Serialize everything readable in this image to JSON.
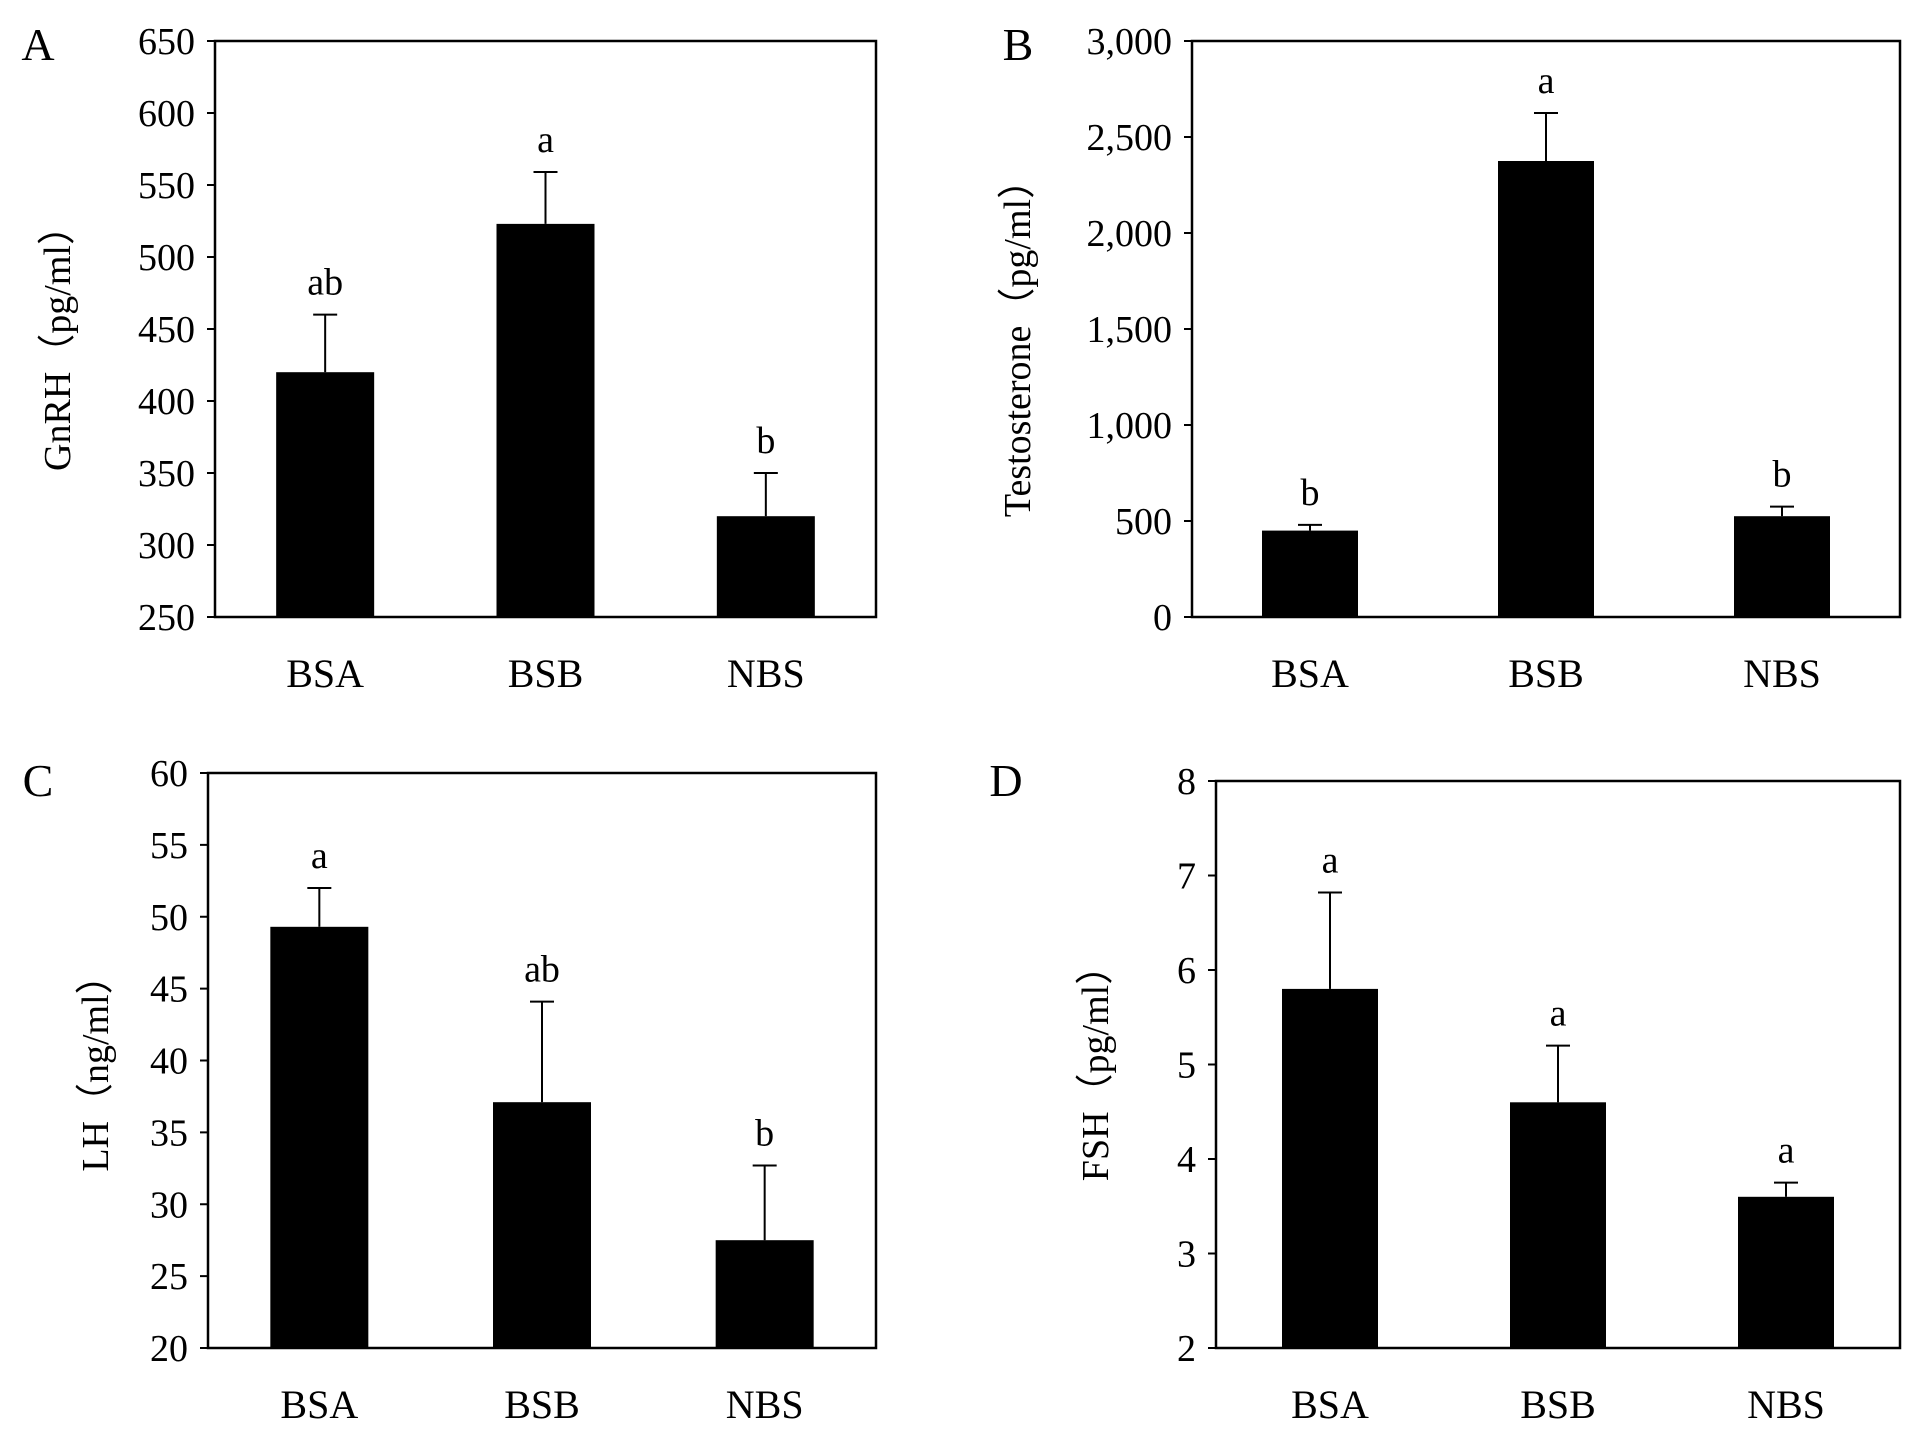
{
  "colors": {
    "bar": "#000000",
    "axis": "#000000",
    "background": "#ffffff"
  },
  "chart_data": [
    {
      "panel": "A",
      "type": "bar",
      "title": "",
      "xlabel": "",
      "ylabel": "GnRH（pg/ml）",
      "categories": [
        "BSA",
        "BSB",
        "NBS"
      ],
      "values": [
        420,
        523,
        320
      ],
      "errors": [
        40,
        36,
        30
      ],
      "significance": [
        "ab",
        "a",
        "b"
      ],
      "ylim": [
        250,
        650
      ],
      "yticks": [
        250,
        300,
        350,
        400,
        450,
        500,
        550,
        600,
        650
      ],
      "ytick_labels": [
        "250",
        "300",
        "350",
        "400",
        "450",
        "500",
        "550",
        "600",
        "650"
      ],
      "grid": false
    },
    {
      "panel": "B",
      "type": "bar",
      "title": "",
      "xlabel": "",
      "ylabel": "Testosterone（pg/ml）",
      "categories": [
        "BSA",
        "BSB",
        "NBS"
      ],
      "values": [
        450,
        2375,
        525
      ],
      "errors": [
        30,
        250,
        50
      ],
      "significance": [
        "b",
        "a",
        "b"
      ],
      "ylim": [
        0,
        3000
      ],
      "yticks": [
        0,
        500,
        1000,
        1500,
        2000,
        2500,
        3000
      ],
      "ytick_labels": [
        "0",
        "500",
        "1,000",
        "1,500",
        "2,000",
        "2,500",
        "3,000"
      ],
      "grid": false
    },
    {
      "panel": "C",
      "type": "bar",
      "title": "",
      "xlabel": "",
      "ylabel": "LH（ng/ml）",
      "categories": [
        "BSA",
        "BSB",
        "NBS"
      ],
      "values": [
        49.3,
        37.1,
        27.5
      ],
      "errors": [
        2.7,
        7,
        5.2
      ],
      "significance": [
        "a",
        "ab",
        "b"
      ],
      "ylim": [
        20,
        60
      ],
      "yticks": [
        20,
        25,
        30,
        35,
        40,
        45,
        50,
        55,
        60
      ],
      "ytick_labels": [
        "20",
        "25",
        "30",
        "35",
        "40",
        "45",
        "50",
        "55",
        "60"
      ],
      "grid": false
    },
    {
      "panel": "D",
      "type": "bar",
      "title": "",
      "xlabel": "",
      "ylabel": "FSH（pg/ml）",
      "categories": [
        "BSA",
        "BSB",
        "NBS"
      ],
      "values": [
        5.8,
        4.6,
        3.6
      ],
      "errors": [
        1.02,
        0.6,
        0.15
      ],
      "significance": [
        "a",
        "a",
        "a"
      ],
      "ylim": [
        2,
        8
      ],
      "yticks": [
        2,
        3,
        4,
        5,
        6,
        7,
        8
      ],
      "ytick_labels": [
        "2",
        "3",
        "4",
        "5",
        "6",
        "7",
        "8"
      ],
      "grid": false
    }
  ]
}
